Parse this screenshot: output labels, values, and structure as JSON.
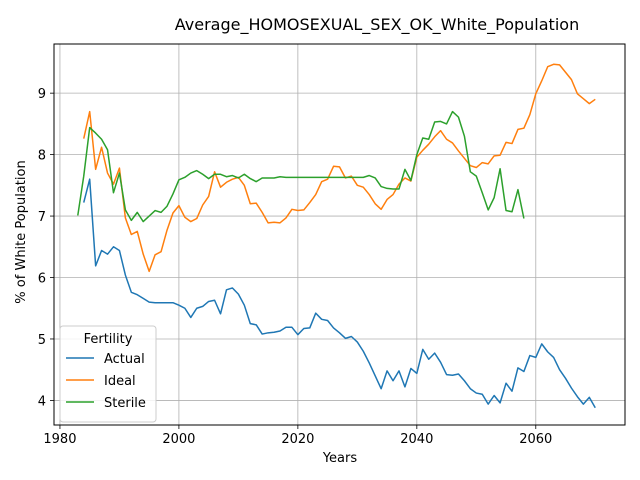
{
  "chart_data": {
    "type": "line",
    "title": "Average_HOMOSEXUAL_SEX_OK_White_Population",
    "xlabel": "Years",
    "ylabel": "% of White Population",
    "xlim": [
      1979,
      2075
    ],
    "ylim": [
      3.6,
      9.8
    ],
    "x_ticks": [
      1980,
      2000,
      2020,
      2040,
      2060
    ],
    "x_tick_labels": [
      "1980",
      "2000",
      "2020",
      "2040",
      "2060"
    ],
    "y_ticks": [
      4,
      5,
      6,
      7,
      8,
      9
    ],
    "y_tick_labels": [
      "4",
      "5",
      "6",
      "7",
      "8",
      "9"
    ],
    "grid": true,
    "legend": {
      "title": "Fertility",
      "placement": "lower-left"
    },
    "series": [
      {
        "name": "Actual",
        "color": "#1f77b4",
        "points": [
          [
            1984,
            7.22
          ],
          [
            1985,
            7.6
          ],
          [
            1986,
            6.19
          ],
          [
            1987,
            6.44
          ],
          [
            1988,
            6.38
          ],
          [
            1989,
            6.5
          ],
          [
            1990,
            6.44
          ],
          [
            1991,
            6.04
          ],
          [
            1992,
            5.76
          ],
          [
            1993,
            5.72
          ],
          [
            1994,
            5.66
          ],
          [
            1995,
            5.6
          ],
          [
            1996,
            5.59
          ],
          [
            1997,
            5.59
          ],
          [
            1998,
            5.59
          ],
          [
            1999,
            5.59
          ],
          [
            2000,
            5.55
          ],
          [
            2001,
            5.5
          ],
          [
            2002,
            5.35
          ],
          [
            2003,
            5.5
          ],
          [
            2004,
            5.53
          ],
          [
            2005,
            5.61
          ],
          [
            2006,
            5.63
          ],
          [
            2007,
            5.41
          ],
          [
            2008,
            5.8
          ],
          [
            2009,
            5.83
          ],
          [
            2010,
            5.73
          ],
          [
            2011,
            5.55
          ],
          [
            2012,
            5.25
          ],
          [
            2013,
            5.23
          ],
          [
            2014,
            5.08
          ],
          [
            2015,
            5.1
          ],
          [
            2016,
            5.11
          ],
          [
            2017,
            5.13
          ],
          [
            2018,
            5.19
          ],
          [
            2019,
            5.19
          ],
          [
            2020,
            5.07
          ],
          [
            2021,
            5.17
          ],
          [
            2022,
            5.18
          ],
          [
            2023,
            5.42
          ],
          [
            2024,
            5.32
          ],
          [
            2025,
            5.3
          ],
          [
            2026,
            5.18
          ],
          [
            2027,
            5.1
          ],
          [
            2028,
            5.01
          ],
          [
            2029,
            5.04
          ],
          [
            2030,
            4.95
          ],
          [
            2031,
            4.8
          ],
          [
            2032,
            4.61
          ],
          [
            2033,
            4.4
          ],
          [
            2034,
            4.19
          ],
          [
            2035,
            4.48
          ],
          [
            2036,
            4.32
          ],
          [
            2037,
            4.48
          ],
          [
            2038,
            4.22
          ],
          [
            2039,
            4.52
          ],
          [
            2040,
            4.44
          ],
          [
            2041,
            4.83
          ],
          [
            2042,
            4.67
          ],
          [
            2043,
            4.77
          ],
          [
            2044,
            4.62
          ],
          [
            2045,
            4.42
          ],
          [
            2046,
            4.41
          ],
          [
            2047,
            4.43
          ],
          [
            2048,
            4.32
          ],
          [
            2049,
            4.19
          ],
          [
            2050,
            4.12
          ],
          [
            2051,
            4.1
          ],
          [
            2052,
            3.94
          ],
          [
            2053,
            4.08
          ],
          [
            2054,
            3.96
          ],
          [
            2055,
            4.28
          ],
          [
            2056,
            4.15
          ],
          [
            2057,
            4.53
          ],
          [
            2058,
            4.47
          ],
          [
            2059,
            4.73
          ],
          [
            2060,
            4.7
          ],
          [
            2061,
            4.92
          ],
          [
            2062,
            4.79
          ],
          [
            2063,
            4.7
          ],
          [
            2064,
            4.5
          ],
          [
            2065,
            4.36
          ],
          [
            2066,
            4.2
          ],
          [
            2067,
            4.06
          ],
          [
            2068,
            3.94
          ],
          [
            2069,
            4.05
          ],
          [
            2070,
            3.88
          ]
        ]
      },
      {
        "name": "Ideal",
        "color": "#ff7f0e",
        "points": [
          [
            1984,
            8.26
          ],
          [
            1985,
            8.7
          ],
          [
            1986,
            7.76
          ],
          [
            1987,
            8.12
          ],
          [
            1988,
            7.7
          ],
          [
            1989,
            7.52
          ],
          [
            1990,
            7.78
          ],
          [
            1991,
            6.97
          ],
          [
            1992,
            6.7
          ],
          [
            1993,
            6.75
          ],
          [
            1994,
            6.38
          ],
          [
            1995,
            6.1
          ],
          [
            1996,
            6.37
          ],
          [
            1997,
            6.42
          ],
          [
            1998,
            6.77
          ],
          [
            1999,
            7.05
          ],
          [
            2000,
            7.17
          ],
          [
            2001,
            6.98
          ],
          [
            2002,
            6.91
          ],
          [
            2003,
            6.96
          ],
          [
            2004,
            7.18
          ],
          [
            2005,
            7.32
          ],
          [
            2006,
            7.72
          ],
          [
            2007,
            7.47
          ],
          [
            2008,
            7.55
          ],
          [
            2009,
            7.6
          ],
          [
            2010,
            7.63
          ],
          [
            2011,
            7.5
          ],
          [
            2012,
            7.2
          ],
          [
            2013,
            7.21
          ],
          [
            2014,
            7.06
          ],
          [
            2015,
            6.89
          ],
          [
            2016,
            6.9
          ],
          [
            2017,
            6.89
          ],
          [
            2018,
            6.97
          ],
          [
            2019,
            7.11
          ],
          [
            2020,
            7.09
          ],
          [
            2021,
            7.1
          ],
          [
            2022,
            7.22
          ],
          [
            2023,
            7.35
          ],
          [
            2024,
            7.56
          ],
          [
            2025,
            7.6
          ],
          [
            2026,
            7.81
          ],
          [
            2027,
            7.8
          ],
          [
            2028,
            7.62
          ],
          [
            2029,
            7.65
          ],
          [
            2030,
            7.5
          ],
          [
            2031,
            7.47
          ],
          [
            2032,
            7.35
          ],
          [
            2033,
            7.2
          ],
          [
            2034,
            7.11
          ],
          [
            2035,
            7.27
          ],
          [
            2036,
            7.35
          ],
          [
            2037,
            7.52
          ],
          [
            2038,
            7.62
          ],
          [
            2039,
            7.57
          ],
          [
            2040,
            7.96
          ],
          [
            2041,
            8.07
          ],
          [
            2042,
            8.17
          ],
          [
            2043,
            8.29
          ],
          [
            2044,
            8.39
          ],
          [
            2045,
            8.25
          ],
          [
            2046,
            8.19
          ],
          [
            2047,
            8.06
          ],
          [
            2048,
            7.94
          ],
          [
            2049,
            7.82
          ],
          [
            2050,
            7.79
          ],
          [
            2051,
            7.87
          ],
          [
            2052,
            7.85
          ],
          [
            2053,
            7.98
          ],
          [
            2054,
            7.99
          ],
          [
            2055,
            8.2
          ],
          [
            2056,
            8.18
          ],
          [
            2057,
            8.41
          ],
          [
            2058,
            8.43
          ],
          [
            2059,
            8.65
          ],
          [
            2060,
            8.99
          ],
          [
            2061,
            9.2
          ],
          [
            2062,
            9.43
          ],
          [
            2063,
            9.47
          ],
          [
            2064,
            9.46
          ],
          [
            2065,
            9.34
          ],
          [
            2066,
            9.22
          ],
          [
            2067,
            8.99
          ],
          [
            2068,
            8.91
          ],
          [
            2069,
            8.83
          ],
          [
            2070,
            8.9
          ]
        ]
      },
      {
        "name": "Sterile",
        "color": "#2ca02c",
        "points": [
          [
            1983,
            7.01
          ],
          [
            1984,
            7.65
          ],
          [
            1985,
            8.44
          ],
          [
            1986,
            8.35
          ],
          [
            1987,
            8.25
          ],
          [
            1988,
            8.08
          ],
          [
            1989,
            7.38
          ],
          [
            1990,
            7.7
          ],
          [
            1991,
            7.1
          ],
          [
            1992,
            6.93
          ],
          [
            1993,
            7.06
          ],
          [
            1994,
            6.91
          ],
          [
            1995,
            7.0
          ],
          [
            1996,
            7.09
          ],
          [
            1997,
            7.06
          ],
          [
            1998,
            7.16
          ],
          [
            1999,
            7.36
          ],
          [
            2000,
            7.59
          ],
          [
            2001,
            7.63
          ],
          [
            2002,
            7.7
          ],
          [
            2003,
            7.74
          ],
          [
            2004,
            7.68
          ],
          [
            2005,
            7.61
          ],
          [
            2006,
            7.68
          ],
          [
            2007,
            7.68
          ],
          [
            2008,
            7.64
          ],
          [
            2009,
            7.66
          ],
          [
            2010,
            7.62
          ],
          [
            2011,
            7.68
          ],
          [
            2012,
            7.61
          ],
          [
            2013,
            7.56
          ],
          [
            2014,
            7.62
          ],
          [
            2015,
            7.62
          ],
          [
            2016,
            7.62
          ],
          [
            2017,
            7.64
          ],
          [
            2018,
            7.63
          ],
          [
            2019,
            7.63
          ],
          [
            2020,
            7.63
          ],
          [
            2021,
            7.63
          ],
          [
            2022,
            7.63
          ],
          [
            2023,
            7.63
          ],
          [
            2024,
            7.63
          ],
          [
            2025,
            7.63
          ],
          [
            2026,
            7.63
          ],
          [
            2027,
            7.63
          ],
          [
            2028,
            7.63
          ],
          [
            2029,
            7.63
          ],
          [
            2030,
            7.63
          ],
          [
            2031,
            7.63
          ],
          [
            2032,
            7.66
          ],
          [
            2033,
            7.62
          ],
          [
            2034,
            7.48
          ],
          [
            2035,
            7.45
          ],
          [
            2036,
            7.44
          ],
          [
            2037,
            7.44
          ],
          [
            2038,
            7.76
          ],
          [
            2039,
            7.58
          ],
          [
            2040,
            8.0
          ],
          [
            2041,
            8.27
          ],
          [
            2042,
            8.25
          ],
          [
            2043,
            8.53
          ],
          [
            2044,
            8.54
          ],
          [
            2045,
            8.5
          ],
          [
            2046,
            8.7
          ],
          [
            2047,
            8.61
          ],
          [
            2048,
            8.3
          ],
          [
            2049,
            7.72
          ],
          [
            2050,
            7.65
          ],
          [
            2051,
            7.38
          ],
          [
            2052,
            7.1
          ],
          [
            2053,
            7.3
          ],
          [
            2054,
            7.77
          ],
          [
            2055,
            7.09
          ],
          [
            2056,
            7.07
          ],
          [
            2057,
            7.43
          ],
          [
            2058,
            6.96
          ]
        ]
      }
    ]
  }
}
